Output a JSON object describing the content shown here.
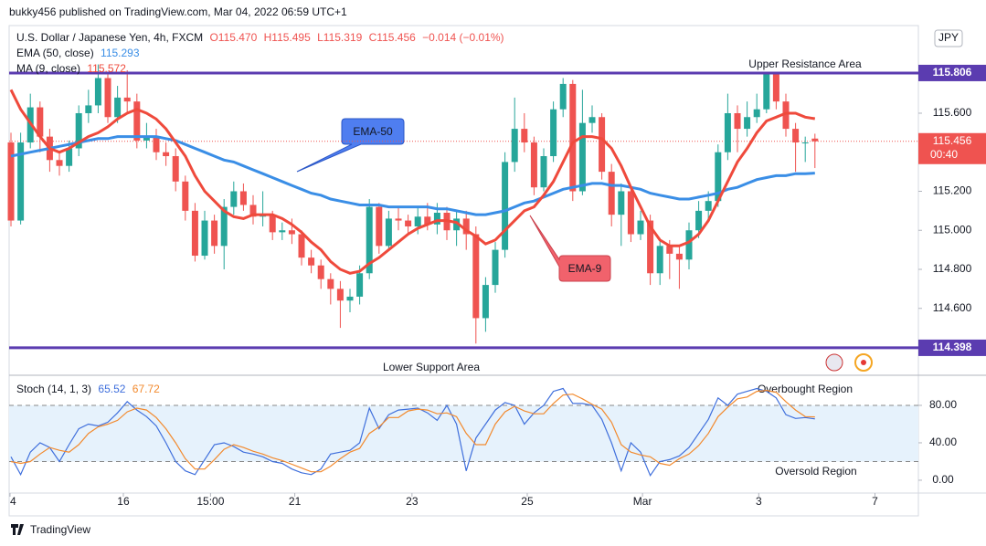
{
  "header": {
    "publisher": "bukky456 published on TradingView.com, Mar 04, 2022 06:59 UTC+1",
    "footer": "TradingView",
    "currency": "JPY"
  },
  "chart_data": [
    {
      "type": "candlestick",
      "symbol": "U.S. Dollar / Japanese Yen, 4h, FXCM",
      "ohlc_labels": [
        "O115.470",
        "H115.495",
        "L115.319",
        "C115.456"
      ],
      "change": "−0.014 (−0.01%)",
      "up_color": "#26a69a",
      "down_color": "#ef5350",
      "open": [
        115.45,
        115.05,
        115.45,
        115.63,
        115.48,
        115.36,
        115.33,
        115.42,
        115.6,
        115.64,
        115.78,
        115.58,
        115.68,
        115.66,
        115.46,
        115.48,
        115.4,
        115.38,
        115.25,
        115.1,
        114.87,
        115.05,
        114.92,
        115.12,
        115.2,
        115.13,
        115.07,
        115.08,
        114.99,
        115.0,
        114.98,
        114.86,
        114.82,
        114.75,
        114.7,
        114.64,
        114.66,
        114.78,
        115.12,
        114.92,
        115.06,
        115.05,
        115.02,
        115.07,
        115.03,
        115.09,
        115.0,
        115.06,
        114.98,
        114.55,
        114.72,
        114.9,
        115.35,
        115.52,
        115.45,
        115.22,
        115.38,
        115.62,
        115.75,
        115.2,
        115.55,
        115.58,
        115.3,
        115.08,
        115.2,
        114.98,
        115.05,
        114.78,
        114.92,
        114.88,
        114.85,
        115.0,
        115.1,
        115.15,
        115.4,
        115.6,
        115.52,
        115.58,
        115.62,
        115.8,
        115.66,
        115.52,
        115.45,
        115.47
      ],
      "high": [
        115.5,
        115.5,
        115.7,
        115.66,
        115.52,
        115.4,
        115.46,
        115.64,
        115.72,
        115.85,
        115.8,
        115.74,
        115.82,
        115.7,
        115.55,
        115.52,
        115.45,
        115.42,
        115.28,
        115.14,
        115.1,
        115.08,
        115.16,
        115.25,
        115.24,
        115.18,
        115.2,
        115.1,
        115.04,
        115.06,
        115.0,
        114.9,
        114.85,
        114.78,
        114.74,
        114.7,
        114.82,
        115.16,
        115.14,
        115.1,
        115.12,
        115.08,
        115.12,
        115.14,
        115.14,
        115.12,
        115.1,
        115.1,
        115.02,
        114.76,
        114.94,
        115.4,
        115.68,
        115.6,
        115.48,
        115.42,
        115.66,
        115.78,
        115.77,
        115.72,
        115.64,
        115.6,
        115.34,
        115.24,
        115.22,
        115.1,
        115.08,
        114.96,
        114.95,
        114.92,
        115.04,
        115.15,
        115.2,
        115.44,
        115.7,
        115.64,
        115.66,
        115.7,
        115.81,
        115.8,
        115.7,
        115.55,
        115.48,
        115.495
      ],
      "low": [
        115.02,
        115.03,
        115.42,
        115.4,
        115.3,
        115.28,
        115.3,
        115.38,
        115.55,
        115.6,
        115.55,
        115.55,
        115.6,
        115.42,
        115.42,
        115.36,
        115.33,
        115.2,
        115.05,
        114.84,
        114.85,
        114.88,
        114.8,
        115.08,
        115.1,
        115.03,
        115.02,
        114.95,
        114.95,
        114.93,
        114.82,
        114.78,
        114.7,
        114.62,
        114.5,
        114.58,
        114.62,
        114.75,
        114.88,
        114.9,
        115.0,
        114.98,
        114.98,
        115.0,
        114.98,
        114.95,
        114.92,
        114.9,
        114.42,
        114.48,
        114.68,
        114.86,
        115.3,
        115.4,
        115.18,
        115.2,
        115.35,
        115.58,
        115.15,
        115.18,
        115.5,
        115.26,
        115.02,
        114.92,
        114.94,
        114.95,
        114.72,
        114.72,
        114.75,
        114.7,
        114.8,
        114.96,
        115.05,
        115.12,
        115.36,
        115.4,
        115.48,
        115.55,
        115.6,
        115.62,
        115.48,
        115.3,
        115.35,
        115.319
      ],
      "close": [
        115.05,
        115.45,
        115.63,
        115.48,
        115.36,
        115.33,
        115.42,
        115.6,
        115.64,
        115.78,
        115.58,
        115.68,
        115.66,
        115.46,
        115.48,
        115.4,
        115.38,
        115.25,
        115.1,
        114.87,
        115.05,
        114.92,
        115.12,
        115.2,
        115.13,
        115.07,
        115.08,
        114.99,
        115.0,
        114.98,
        114.86,
        114.82,
        114.75,
        114.7,
        114.64,
        114.66,
        114.78,
        115.12,
        114.92,
        115.06,
        115.05,
        115.02,
        115.07,
        115.03,
        115.09,
        115.0,
        115.06,
        114.98,
        114.55,
        114.72,
        114.9,
        115.35,
        115.52,
        115.45,
        115.22,
        115.38,
        115.62,
        115.75,
        115.2,
        115.55,
        115.58,
        115.3,
        115.08,
        115.2,
        114.98,
        115.05,
        114.78,
        114.92,
        114.88,
        114.85,
        115.0,
        115.1,
        115.15,
        115.4,
        115.6,
        115.52,
        115.58,
        115.62,
        115.8,
        115.66,
        115.52,
        115.45,
        115.45,
        115.456
      ],
      "series": [
        {
          "name": "EMA (50, close)",
          "value_label": "115.293",
          "color": "#3a8ee6",
          "values": [
            115.38,
            115.39,
            115.4,
            115.41,
            115.42,
            115.43,
            115.44,
            115.45,
            115.46,
            115.47,
            115.47,
            115.48,
            115.48,
            115.48,
            115.48,
            115.48,
            115.47,
            115.46,
            115.44,
            115.42,
            115.4,
            115.38,
            115.36,
            115.35,
            115.33,
            115.31,
            115.29,
            115.27,
            115.25,
            115.23,
            115.21,
            115.19,
            115.18,
            115.16,
            115.15,
            115.14,
            115.13,
            115.13,
            115.13,
            115.12,
            115.12,
            115.12,
            115.12,
            115.12,
            115.11,
            115.11,
            115.1,
            115.09,
            115.08,
            115.08,
            115.09,
            115.1,
            115.12,
            115.14,
            115.15,
            115.17,
            115.19,
            115.21,
            115.22,
            115.23,
            115.24,
            115.24,
            115.23,
            115.23,
            115.22,
            115.21,
            115.19,
            115.18,
            115.17,
            115.16,
            115.16,
            115.17,
            115.18,
            115.19,
            115.21,
            115.22,
            115.24,
            115.26,
            115.27,
            115.28,
            115.28,
            115.29,
            115.29,
            115.293
          ]
        },
        {
          "name": "MA (9, close)",
          "value_label": "115.572",
          "color": "#ef4a3c",
          "values": [
            115.72,
            115.62,
            115.55,
            115.48,
            115.42,
            115.4,
            115.42,
            115.45,
            115.48,
            115.5,
            115.53,
            115.57,
            115.6,
            115.62,
            115.6,
            115.57,
            115.52,
            115.45,
            115.38,
            115.28,
            115.2,
            115.15,
            115.1,
            115.07,
            115.06,
            115.08,
            115.08,
            115.08,
            115.06,
            115.03,
            114.99,
            114.94,
            114.9,
            114.84,
            114.8,
            114.78,
            114.79,
            114.83,
            114.86,
            114.9,
            114.94,
            114.98,
            115.01,
            115.03,
            115.05,
            115.05,
            115.04,
            115.0,
            114.97,
            114.93,
            114.95,
            115.0,
            115.05,
            115.1,
            115.12,
            115.18,
            115.25,
            115.35,
            115.45,
            115.48,
            115.48,
            115.47,
            115.42,
            115.33,
            115.22,
            115.12,
            115.02,
            114.95,
            114.92,
            114.92,
            114.94,
            114.98,
            115.05,
            115.15,
            115.25,
            115.35,
            115.42,
            115.5,
            115.56,
            115.58,
            115.6,
            115.6,
            115.58,
            115.572
          ]
        }
      ],
      "levels": [
        115.806,
        114.398
      ],
      "level_color": "#5b3cb0",
      "last_price": 115.456,
      "countdown": "00:40",
      "annotations": [
        "Upper Resistance Area",
        "Lower Support Area",
        "EMA-50",
        "EMA-9"
      ],
      "xlim": [
        -0.19,
        93.68
      ],
      "ylim": [
        114.262,
        116.049
      ],
      "yticks": [
        {
          "value": 115.6,
          "label": "115.600"
        },
        {
          "value": 115.2,
          "label": "115.200"
        },
        {
          "value": 115.0,
          "label": "115.000"
        },
        {
          "value": 114.8,
          "label": "114.800"
        },
        {
          "value": 114.6,
          "label": "114.600"
        }
      ],
      "grid": false
    },
    {
      "type": "line",
      "title": "Stoch (14, 1, 3)",
      "series": [
        {
          "value_label": "65.52",
          "color": "#3f6fdc",
          "values": [
            25,
            6,
            30,
            40,
            35,
            20,
            38,
            55,
            60,
            58,
            62,
            72,
            84,
            75,
            68,
            58,
            40,
            20,
            10,
            6,
            22,
            38,
            40,
            36,
            30,
            28,
            25,
            20,
            18,
            12,
            8,
            6,
            12,
            28,
            30,
            32,
            40,
            77,
            55,
            70,
            75,
            76,
            77,
            72,
            64,
            80,
            60,
            10,
            45,
            60,
            75,
            83,
            80,
            60,
            72,
            80,
            95,
            98,
            82,
            82,
            80,
            65,
            40,
            10,
            40,
            30,
            5,
            20,
            22,
            26,
            35,
            50,
            65,
            88,
            80,
            92,
            95,
            98,
            95,
            88,
            70,
            66,
            67,
            65.52
          ]
        },
        {
          "value_label": "67.72",
          "color": "#f28a2e",
          "values": [
            20,
            18,
            20,
            28,
            35,
            32,
            30,
            38,
            50,
            57,
            60,
            64,
            73,
            77,
            75,
            67,
            55,
            40,
            23,
            12,
            12,
            22,
            33,
            38,
            35,
            31,
            28,
            24,
            21,
            17,
            13,
            9,
            9,
            15,
            23,
            30,
            34,
            50,
            57,
            67,
            67,
            74,
            76,
            75,
            71,
            72,
            68,
            50,
            38,
            38,
            60,
            73,
            79,
            74,
            71,
            71,
            82,
            91,
            92,
            87,
            81,
            76,
            62,
            38,
            30,
            27,
            25,
            18,
            16,
            23,
            28,
            37,
            50,
            68,
            78,
            87,
            89,
            95,
            96,
            94,
            84,
            75,
            68,
            67.72
          ]
        }
      ],
      "bands": [
        20,
        80
      ],
      "annotations": [
        "Overbought Region",
        "Oversold Region"
      ],
      "xlim": [
        -0.19,
        93.68
      ],
      "ylim": [
        -13.7,
        111.2
      ],
      "yticks": [
        {
          "value": 80,
          "label": "80.00"
        },
        {
          "value": 40,
          "label": "40.00"
        },
        {
          "value": 0,
          "label": "0.00"
        }
      ],
      "xticks": [
        {
          "value": -0.1,
          "label": "4"
        },
        {
          "value": 11.6,
          "label": "16"
        },
        {
          "value": 20.6,
          "label": "15:00"
        },
        {
          "value": 29.3,
          "label": "21"
        },
        {
          "value": 41.4,
          "label": "23"
        },
        {
          "value": 53.3,
          "label": "25"
        },
        {
          "value": 65.2,
          "label": "Mar"
        },
        {
          "value": 77.2,
          "label": "3"
        },
        {
          "value": 89.2,
          "label": "7"
        }
      ]
    }
  ]
}
